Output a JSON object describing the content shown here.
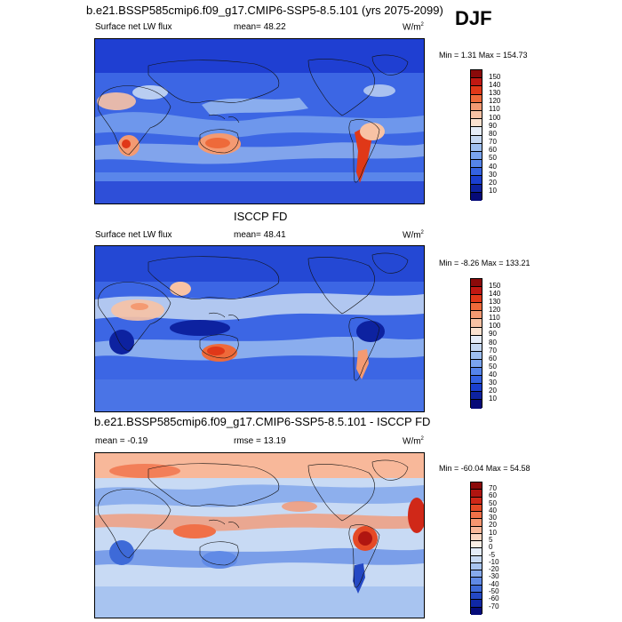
{
  "season": "DJF",
  "panels": [
    {
      "title": "b.e21.BSSP585cmip6.f09_g17.CMIP6-SSP5-8.5.101 (yrs 2075-2099)",
      "left_label": "Surface net LW flux",
      "center_label": "mean=  48.22",
      "units": "W/m",
      "units_sup": "2",
      "minmax": "Min =   1.31 Max = 154.73",
      "cbar_labels": [
        "150",
        "140",
        "130",
        "120",
        "110",
        "100",
        "90",
        "80",
        "70",
        "60",
        "50",
        "40",
        "30",
        "20",
        "10"
      ],
      "cbar_colors": [
        "#8b0a0a",
        "#c01812",
        "#e03818",
        "#ee6a3a",
        "#f49a72",
        "#f8c2a4",
        "#fbe2d0",
        "#e6edf8",
        "#c6d8f2",
        "#9ebff0",
        "#7aa4ee",
        "#5584ea",
        "#3462e2",
        "#1a3fd0",
        "#0d22a0",
        "#060a78"
      ],
      "map_theme": "model"
    },
    {
      "title": "ISCCP FD",
      "left_label": "Surface net LW flux",
      "center_label": "mean=  48.41",
      "units": "W/m",
      "units_sup": "2",
      "minmax": "Min =  -8.26 Max = 133.21",
      "cbar_labels": [
        "150",
        "140",
        "130",
        "120",
        "110",
        "100",
        "90",
        "80",
        "70",
        "60",
        "50",
        "40",
        "30",
        "20",
        "10"
      ],
      "cbar_colors": [
        "#8b0a0a",
        "#c01812",
        "#e03818",
        "#ee6a3a",
        "#f49a72",
        "#f8c2a4",
        "#fbe2d0",
        "#e6edf8",
        "#c6d8f2",
        "#9ebff0",
        "#7aa4ee",
        "#5584ea",
        "#3462e2",
        "#1a3fd0",
        "#0d22a0",
        "#060a78"
      ],
      "map_theme": "obs"
    },
    {
      "title": "b.e21.BSSP585cmip6.f09_g17.CMIP6-SSP5-8.5.101 - ISCCP FD",
      "left_label": "mean =  -0.19",
      "center_label": "rmse =  13.19",
      "units": "W/m",
      "units_sup": "2",
      "minmax": "Min = -60.04 Max =  54.58",
      "cbar_labels": [
        "70",
        "60",
        "50",
        "40",
        "30",
        "20",
        "10",
        "5",
        "0",
        "-5",
        "-10",
        "-20",
        "-30",
        "-40",
        "-50",
        "-60",
        "-70"
      ],
      "cbar_colors": [
        "#8b0a0a",
        "#b01510",
        "#d02818",
        "#e54a26",
        "#f07048",
        "#f59670",
        "#f8b89a",
        "#fbd6c2",
        "#fdf0e6",
        "#e4ecf8",
        "#c8daf4",
        "#a8c4f0",
        "#86aaec",
        "#608ae6",
        "#3e6ad8",
        "#2448c4",
        "#1028a4",
        "#060c7a"
      ],
      "map_theme": "diff"
    }
  ]
}
